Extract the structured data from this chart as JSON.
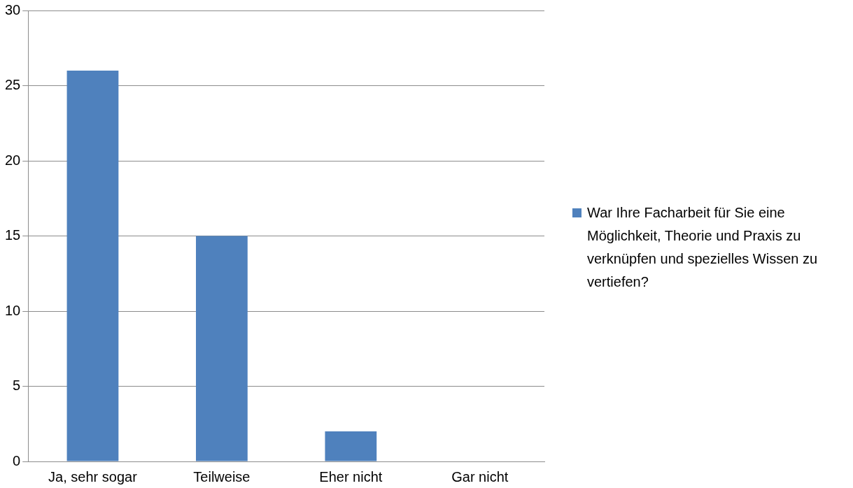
{
  "chart_data": {
    "type": "bar",
    "categories": [
      "Ja, sehr sogar",
      "Teilweise",
      "Eher nicht",
      "Gar nicht"
    ],
    "series": [
      {
        "name": "War Ihre Facharbeit für Sie eine Möglichkeit, Theorie und Praxis zu verknüpfen und spezielles Wissen zu vertiefen?",
        "color": "#4f81bd",
        "values": [
          26,
          15,
          2,
          0
        ]
      }
    ],
    "ylim": [
      0,
      30
    ],
    "yticks": [
      0,
      5,
      10,
      15,
      20,
      25,
      30
    ],
    "grid": "y",
    "legend": "right"
  }
}
